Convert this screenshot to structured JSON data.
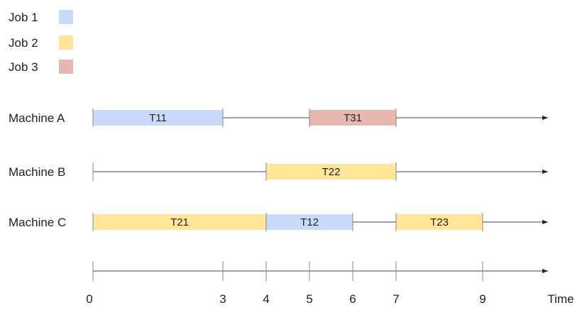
{
  "legend": [
    {
      "label": "Job 1",
      "color": "#c9daf8"
    },
    {
      "label": "Job 2",
      "color": "#ffe599"
    },
    {
      "label": "Job 3",
      "color": "#e6b8af"
    }
  ],
  "machines": [
    {
      "label": "Machine A",
      "tasks": [
        {
          "label": "T11",
          "start": 0,
          "end": 3,
          "job": 0
        },
        {
          "label": "T31",
          "start": 5,
          "end": 7,
          "job": 2
        }
      ]
    },
    {
      "label": "Machine B",
      "tasks": [
        {
          "label": "T22",
          "start": 4,
          "end": 7,
          "job": 1
        }
      ]
    },
    {
      "label": "Machine C",
      "tasks": [
        {
          "label": "T21",
          "start": 0,
          "end": 4,
          "job": 1
        },
        {
          "label": "T12",
          "start": 4,
          "end": 6,
          "job": 0
        },
        {
          "label": "T23",
          "start": 7,
          "end": 9,
          "job": 1
        }
      ]
    }
  ],
  "time_axis": {
    "label": "Time",
    "ticks": [
      0,
      3,
      4,
      5,
      6,
      7,
      9
    ]
  }
}
